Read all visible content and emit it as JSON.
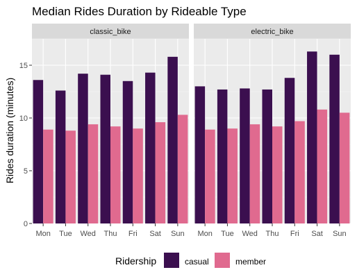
{
  "chart_data": {
    "type": "bar",
    "title": "Median Rides Duration by Rideable Type",
    "xlabel": "",
    "ylabel": "Rides duration (minutes)",
    "ylim": [
      0,
      17.5
    ],
    "yticks": [
      0,
      5,
      10,
      15
    ],
    "categories": [
      "Mon",
      "Tue",
      "Wed",
      "Thu",
      "Fri",
      "Sat",
      "Sun"
    ],
    "grid": true,
    "legend": {
      "title": "Ridership",
      "position": "bottom",
      "entries": [
        {
          "name": "casual",
          "color": "#3b0f4f"
        },
        {
          "name": "member",
          "color": "#e06a8f"
        }
      ]
    },
    "facets": [
      {
        "name": "classic_bike",
        "series": [
          {
            "name": "casual",
            "values": [
              13.6,
              12.6,
              14.2,
              14.1,
              13.5,
              14.3,
              15.8
            ]
          },
          {
            "name": "member",
            "values": [
              8.9,
              8.8,
              9.4,
              9.2,
              9.0,
              9.6,
              10.3
            ]
          }
        ]
      },
      {
        "name": "electric_bike",
        "series": [
          {
            "name": "casual",
            "values": [
              13.0,
              12.7,
              12.8,
              12.7,
              13.8,
              16.3,
              16.0
            ]
          },
          {
            "name": "member",
            "values": [
              8.9,
              9.0,
              9.4,
              9.2,
              9.7,
              10.8,
              10.5
            ]
          }
        ]
      }
    ]
  },
  "colors": {
    "panel_bg": "#ebebeb",
    "strip_bg": "#d9d9d9",
    "grid_major": "#ffffff",
    "grid_minor": "#f5f5f5"
  }
}
